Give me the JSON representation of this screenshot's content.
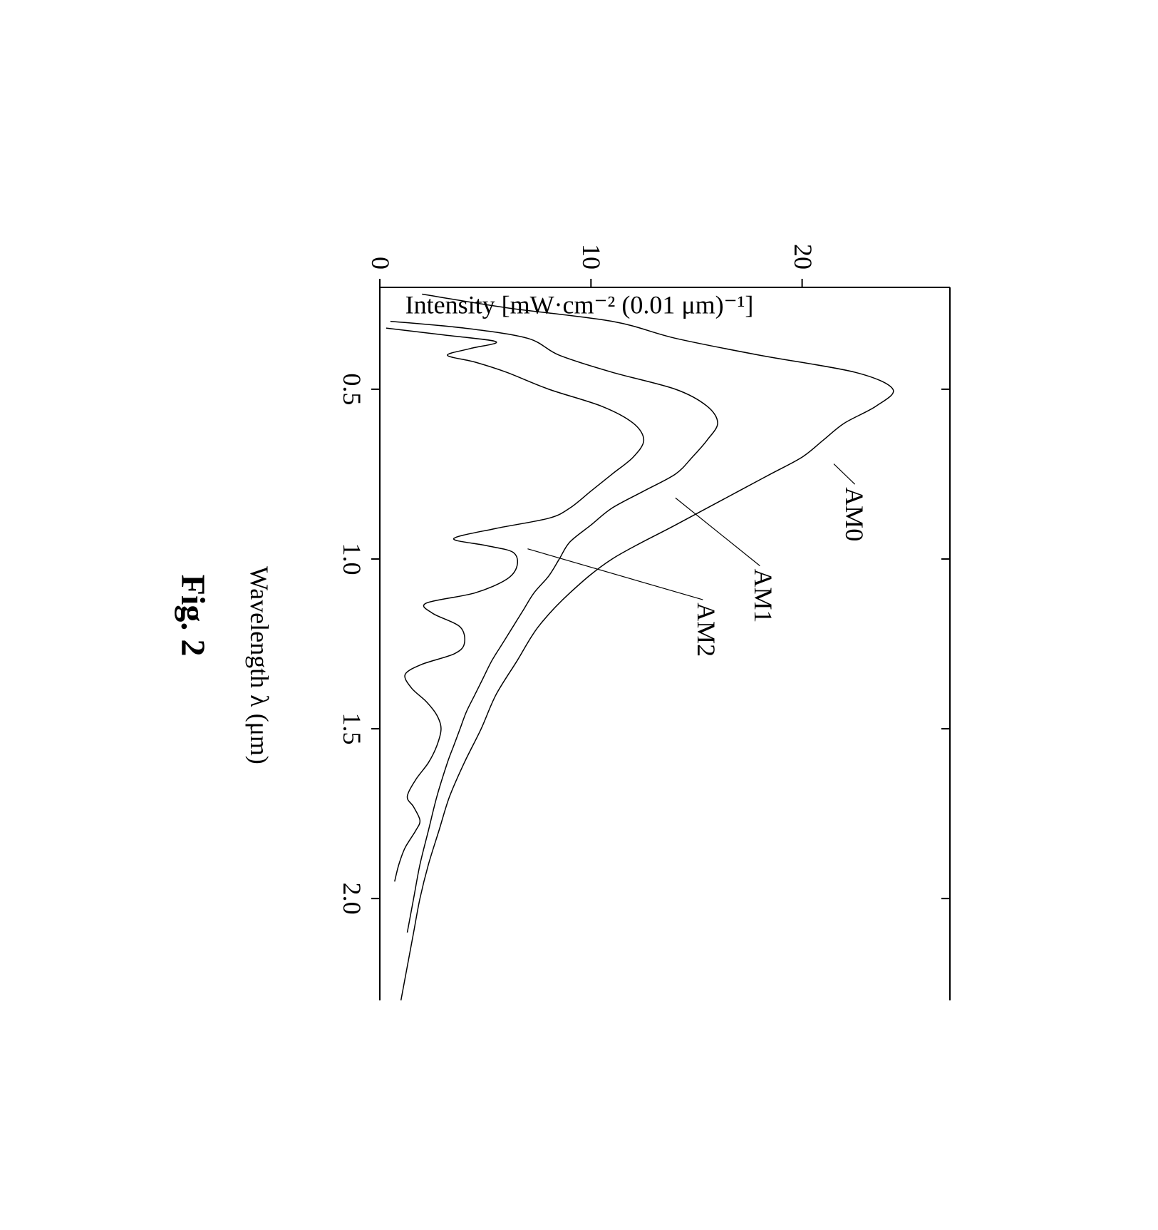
{
  "figure": {
    "caption": "Fig. 2",
    "rotation": 90,
    "background_color": "#ffffff",
    "stroke_color": "#000000"
  },
  "chart": {
    "type": "line",
    "xlabel": "Wavelength λ (μm)",
    "ylabel": "Intensity  [mW·cm⁻² (0.01 μm)⁻¹]",
    "xlim": [
      0.2,
      2.3
    ],
    "ylim": [
      0,
      27
    ],
    "xticks": [
      0.5,
      1.0,
      1.5,
      2.0
    ],
    "xtick_labels": [
      "0.5",
      "1.0",
      "1.5",
      "2.0"
    ],
    "yticks": [
      0,
      10,
      20
    ],
    "ytick_labels": [
      "0",
      "10",
      "20"
    ],
    "label_fontsize": 36,
    "tick_fontsize": 36,
    "axis_line_width": 2
  },
  "series": {
    "AM0": {
      "label": "AM0",
      "label_pos": {
        "x": 0.78,
        "y": 22.5
      },
      "leader_line": {
        "from": {
          "x": 0.72,
          "y": 21.5
        },
        "to": {
          "x": 0.78,
          "y": 22.5
        }
      },
      "stroke": "#000000",
      "stroke_width": 1.5,
      "points": [
        [
          0.22,
          2
        ],
        [
          0.26,
          6
        ],
        [
          0.3,
          11
        ],
        [
          0.35,
          14
        ],
        [
          0.4,
          18
        ],
        [
          0.45,
          22.5
        ],
        [
          0.5,
          24.3
        ],
        [
          0.55,
          23.5
        ],
        [
          0.6,
          22
        ],
        [
          0.65,
          21
        ],
        [
          0.7,
          20
        ],
        [
          0.75,
          18.5
        ],
        [
          0.8,
          17
        ],
        [
          0.9,
          14
        ],
        [
          1.0,
          11
        ],
        [
          1.1,
          9
        ],
        [
          1.2,
          7.5
        ],
        [
          1.3,
          6.5
        ],
        [
          1.4,
          5.5
        ],
        [
          1.5,
          4.8
        ],
        [
          1.6,
          4
        ],
        [
          1.7,
          3.3
        ],
        [
          1.8,
          2.8
        ],
        [
          1.9,
          2.3
        ],
        [
          2.0,
          1.9
        ],
        [
          2.1,
          1.6
        ],
        [
          2.2,
          1.3
        ],
        [
          2.3,
          1.0
        ]
      ]
    },
    "AM1": {
      "label": "AM1",
      "label_pos": {
        "x": 1.02,
        "y": 18.2
      },
      "leader_line": {
        "from": {
          "x": 0.82,
          "y": 14
        },
        "to": {
          "x": 1.02,
          "y": 18
        }
      },
      "stroke": "#000000",
      "stroke_width": 1.5,
      "points": [
        [
          0.3,
          0.5
        ],
        [
          0.32,
          4
        ],
        [
          0.35,
          7
        ],
        [
          0.4,
          8.5
        ],
        [
          0.45,
          11
        ],
        [
          0.5,
          14
        ],
        [
          0.55,
          15.5
        ],
        [
          0.6,
          16
        ],
        [
          0.65,
          15.5
        ],
        [
          0.7,
          14.8
        ],
        [
          0.75,
          14
        ],
        [
          0.8,
          12.5
        ],
        [
          0.85,
          11
        ],
        [
          0.9,
          10
        ],
        [
          0.95,
          9
        ],
        [
          1.0,
          8.5
        ],
        [
          1.05,
          8
        ],
        [
          1.1,
          7.3
        ],
        [
          1.15,
          6.8
        ],
        [
          1.2,
          6.3
        ],
        [
          1.25,
          5.8
        ],
        [
          1.3,
          5.3
        ],
        [
          1.35,
          4.9
        ],
        [
          1.4,
          4.5
        ],
        [
          1.45,
          4.1
        ],
        [
          1.5,
          3.8
        ],
        [
          1.55,
          3.5
        ],
        [
          1.6,
          3.2
        ],
        [
          1.7,
          2.7
        ],
        [
          1.8,
          2.3
        ],
        [
          1.9,
          1.9
        ],
        [
          2.0,
          1.6
        ],
        [
          2.1,
          1.3
        ]
      ]
    },
    "AM2": {
      "label": "AM2",
      "label_pos": {
        "x": 1.12,
        "y": 15.5
      },
      "leader_line": {
        "from": {
          "x": 0.97,
          "y": 7.0
        },
        "to": {
          "x": 1.12,
          "y": 15.3
        }
      },
      "stroke": "#000000",
      "stroke_width": 1.5,
      "points": [
        [
          0.32,
          0.3
        ],
        [
          0.34,
          3
        ],
        [
          0.36,
          5.5
        ],
        [
          0.38,
          4.3
        ],
        [
          0.4,
          3.2
        ],
        [
          0.42,
          4.5
        ],
        [
          0.45,
          6
        ],
        [
          0.5,
          8
        ],
        [
          0.55,
          10.5
        ],
        [
          0.6,
          12
        ],
        [
          0.65,
          12.5
        ],
        [
          0.7,
          12
        ],
        [
          0.75,
          11
        ],
        [
          0.8,
          10
        ],
        [
          0.85,
          9
        ],
        [
          0.88,
          8
        ],
        [
          0.91,
          5.5
        ],
        [
          0.94,
          3.5
        ],
        [
          0.96,
          5
        ],
        [
          0.98,
          6.3
        ],
        [
          1.02,
          6.5
        ],
        [
          1.06,
          6
        ],
        [
          1.1,
          4.5
        ],
        [
          1.13,
          2.2
        ],
        [
          1.16,
          2.5
        ],
        [
          1.2,
          3.8
        ],
        [
          1.25,
          4
        ],
        [
          1.28,
          3.5
        ],
        [
          1.31,
          2
        ],
        [
          1.34,
          1.2
        ],
        [
          1.38,
          1.5
        ],
        [
          1.42,
          2.2
        ],
        [
          1.46,
          2.7
        ],
        [
          1.5,
          2.9
        ],
        [
          1.55,
          2.7
        ],
        [
          1.6,
          2.3
        ],
        [
          1.65,
          1.7
        ],
        [
          1.7,
          1.3
        ],
        [
          1.73,
          1.6
        ],
        [
          1.77,
          1.9
        ],
        [
          1.8,
          1.7
        ],
        [
          1.85,
          1.2
        ],
        [
          1.9,
          0.9
        ],
        [
          1.95,
          0.7
        ]
      ]
    }
  }
}
